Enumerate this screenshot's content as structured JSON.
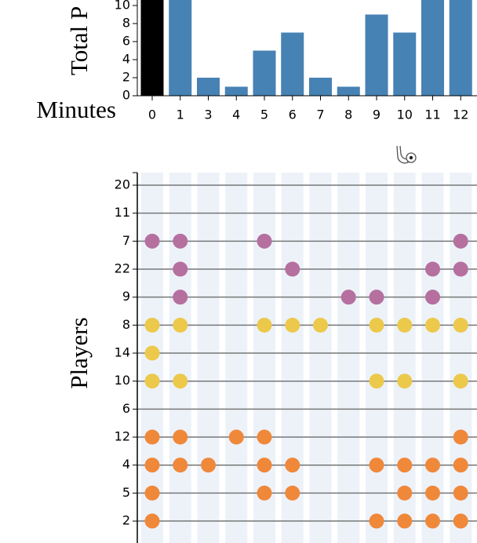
{
  "charts": [
    {
      "type": "bar",
      "ylabel": "Total P",
      "xlabel": "Minutes",
      "categories": [
        0,
        1,
        3,
        4,
        5,
        6,
        7,
        8,
        9,
        10,
        11,
        12
      ],
      "values": [
        12,
        12,
        2,
        1,
        5,
        7,
        2,
        1,
        9,
        7,
        12,
        12
      ],
      "colors": [
        "#000000",
        "#4682b4",
        "#4682b4",
        "#4682b4",
        "#4682b4",
        "#4682b4",
        "#4682b4",
        "#4682b4",
        "#4682b4",
        "#4682b4",
        "#4682b4",
        "#4682b4"
      ],
      "ylim": [
        0,
        12
      ],
      "yticks": [
        0,
        2,
        4,
        6,
        8,
        10
      ]
    },
    {
      "type": "dots",
      "ylabel": "Players",
      "categories": [
        0,
        1,
        3,
        4,
        5,
        6,
        7,
        8,
        9,
        10,
        11,
        12
      ],
      "rows": [
        {
          "player": 20,
          "color": "#b5709f",
          "minutes": []
        },
        {
          "player": 11,
          "color": "#b5709f",
          "minutes": []
        },
        {
          "player": 7,
          "color": "#b5709f",
          "minutes": [
            0,
            1,
            5,
            12
          ]
        },
        {
          "player": 22,
          "color": "#b5709f",
          "minutes": [
            1,
            6,
            11,
            12
          ]
        },
        {
          "player": 9,
          "color": "#b5709f",
          "minutes": [
            1,
            8,
            9,
            11
          ]
        },
        {
          "player": 8,
          "color": "#ecc94b",
          "minutes": [
            0,
            1,
            5,
            6,
            7,
            9,
            10,
            11,
            12
          ]
        },
        {
          "player": 14,
          "color": "#ecc94b",
          "minutes": [
            0
          ]
        },
        {
          "player": 10,
          "color": "#ecc94b",
          "minutes": [
            0,
            1,
            9,
            10,
            12
          ]
        },
        {
          "player": 6,
          "color": "#f0883a",
          "minutes": []
        },
        {
          "player": 12,
          "color": "#f0883a",
          "minutes": [
            0,
            1,
            4,
            5,
            12
          ]
        },
        {
          "player": 4,
          "color": "#f0883a",
          "minutes": [
            0,
            1,
            3,
            5,
            6,
            9,
            10,
            11,
            12
          ]
        },
        {
          "player": 5,
          "color": "#f0883a",
          "minutes": [
            0,
            5,
            6,
            10,
            11,
            12
          ]
        },
        {
          "player": 2,
          "color": "#f0883a",
          "minutes": [
            0,
            9,
            10,
            11,
            12
          ]
        }
      ]
    }
  ]
}
